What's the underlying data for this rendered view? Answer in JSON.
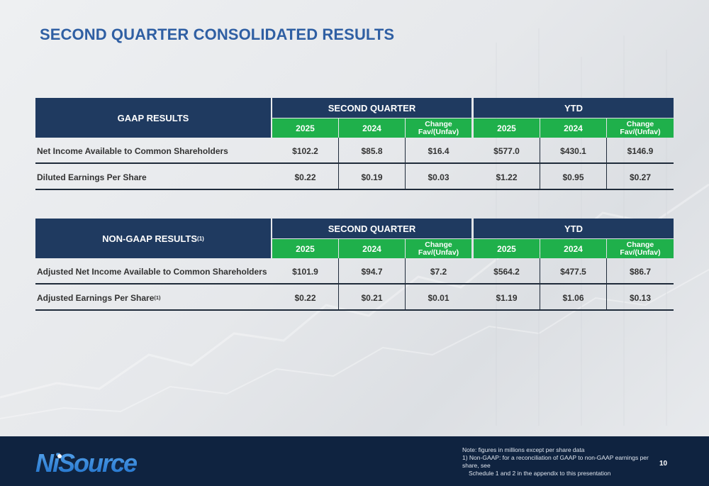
{
  "title": "SECOND QUARTER CONSOLIDATED RESULTS",
  "columns": {
    "group_quarter": "SECOND QUARTER",
    "group_ytd": "YTD",
    "year_current": "2025",
    "year_prior": "2024",
    "change_line1": "Change",
    "change_line2": "Fav/(Unfav)"
  },
  "gaap": {
    "header": "GAAP RESULTS",
    "rows": [
      {
        "label": "Net Income Available to Common Shareholders",
        "values": [
          "$102.2",
          "$85.8",
          "$16.4",
          "$577.0",
          "$430.1",
          "$146.9"
        ]
      },
      {
        "label": "Diluted Earnings Per Share",
        "values": [
          "$0.22",
          "$0.19",
          "$0.03",
          "$1.22",
          "$0.95",
          "$0.27"
        ]
      }
    ]
  },
  "nongaap": {
    "header": "NON-GAAP RESULTS",
    "header_sup": "(1)",
    "rows": [
      {
        "label": "Adjusted Net Income Available to Common Shareholders",
        "sup": "",
        "values": [
          "$101.9",
          "$94.7",
          "$7.2",
          "$564.2",
          "$477.5",
          "$86.7"
        ]
      },
      {
        "label": "Adjusted Earnings Per Share",
        "sup": "(1)",
        "values": [
          "$0.22",
          "$0.21",
          "$0.01",
          "$1.19",
          "$1.06",
          "$0.13"
        ]
      }
    ]
  },
  "footer": {
    "logo_text": "NiSource",
    "note": "Note: figures in millions except per share data",
    "footnote_1": "1)   Non-GAAP: for a reconciliation of GAAP to non-GAAP earnings per share, see",
    "footnote_2": "Schedule 1 and 2 in the appendix to this presentation",
    "page_number": "10"
  },
  "colors": {
    "title": "#2f5fa3",
    "header_navy": "#1f3a60",
    "header_green": "#1fb04b",
    "footer_navy": "#0f2340"
  }
}
